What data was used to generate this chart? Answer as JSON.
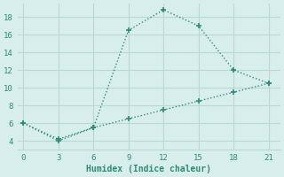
{
  "xlabel": "Humidex (Indice chaleur)",
  "line1_x": [
    0,
    3,
    6,
    9,
    12,
    15,
    18,
    21
  ],
  "line1_y": [
    6,
    4,
    5.5,
    16.5,
    18.8,
    17,
    12,
    10.5
  ],
  "line2_x": [
    0,
    3,
    6,
    9,
    12,
    15,
    18,
    21
  ],
  "line2_y": [
    6,
    4.2,
    5.5,
    6.5,
    7.5,
    8.5,
    9.5,
    10.5
  ],
  "line_color": "#2e8b7a",
  "bg_color": "#d8eeeb",
  "grid_color": "#b8d8d4",
  "xlim": [
    -0.5,
    22
  ],
  "ylim": [
    3.0,
    19.5
  ],
  "xticks": [
    0,
    3,
    6,
    9,
    12,
    15,
    18,
    21
  ],
  "yticks": [
    4,
    6,
    8,
    10,
    12,
    14,
    16,
    18
  ],
  "axis_fontsize": 7,
  "tick_fontsize": 6.5
}
